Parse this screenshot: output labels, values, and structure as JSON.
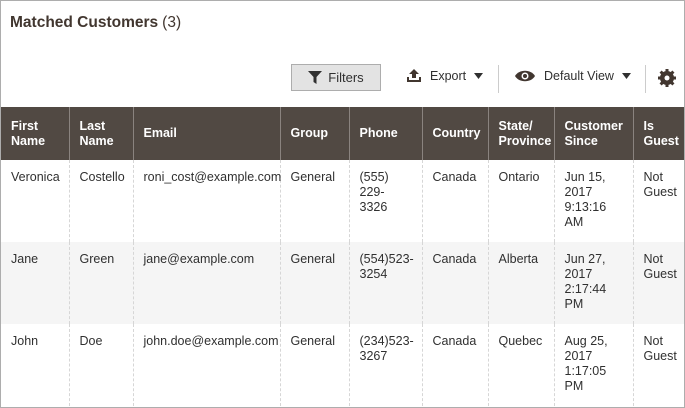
{
  "header": {
    "title": "Matched Customers",
    "count": "(3)"
  },
  "toolbar": {
    "filters": "Filters",
    "export": "Export",
    "view": "Default View"
  },
  "table": {
    "columns": [
      "First Name",
      "Last Name",
      "Email",
      "Group",
      "Phone",
      "Country",
      "State/ Province",
      "Customer Since",
      "Is Guest"
    ],
    "rows": [
      [
        "Veronica",
        "Costello",
        "roni_cost@example.com",
        "General",
        "(555) 229-3326",
        "Canada",
        "Ontario",
        "Jun 15, 2017 9:13:16 AM",
        "Not Guest"
      ],
      [
        "Jane",
        "Green",
        "jane@example.com",
        "General",
        "(554)523-3254",
        "Canada",
        "Alberta",
        "Jun 27, 2017 2:17:44 PM",
        "Not Guest"
      ],
      [
        "John",
        "Doe",
        "john.doe@example.com",
        "General",
        "(234)523-3267",
        "Canada",
        "Quebec",
        "Aug 25, 2017 1:17:05 PM",
        "Not Guest"
      ]
    ]
  }
}
